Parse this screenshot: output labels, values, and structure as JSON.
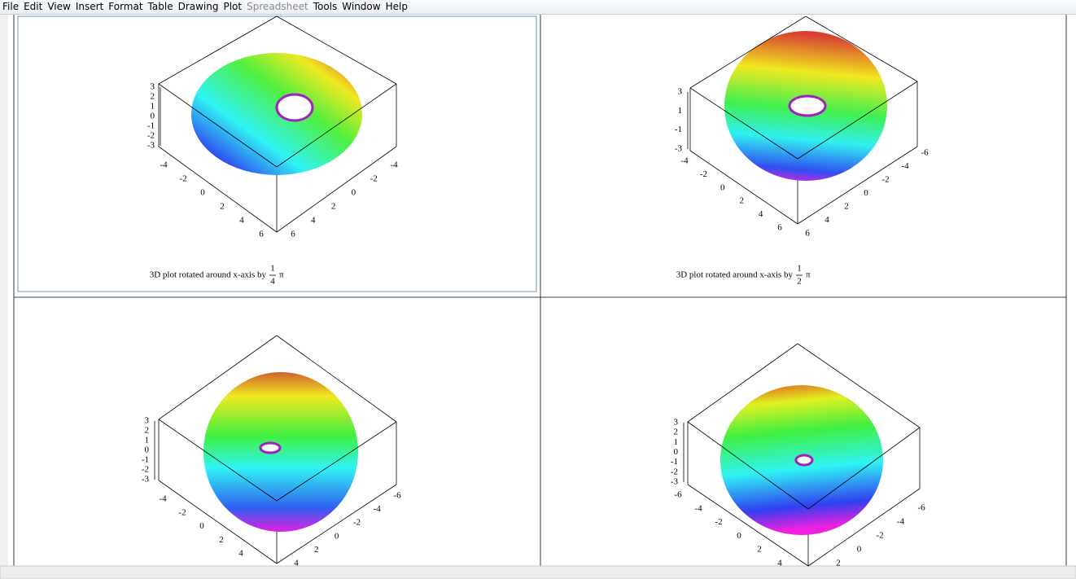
{
  "menu": [
    "File",
    "Edit",
    "View",
    "Insert",
    "Format",
    "Table",
    "Drawing",
    "Plot",
    "Spreadsheet",
    "Tools",
    "Window",
    "Help"
  ],
  "plots": [
    {
      "caption": {
        "text": "3D plot rotated around x-axis by",
        "numerator": "1",
        "denominator": "4",
        "symbol": "π"
      },
      "z_ticks": [
        "3",
        "2",
        "1",
        "0",
        "-1",
        "-2",
        "-3"
      ],
      "left_ticks": [
        "-4",
        "-2",
        "0",
        "2",
        "4",
        "6"
      ],
      "right_ticks": [
        "-4",
        "-2",
        "0",
        "2",
        "4",
        "6"
      ]
    },
    {
      "caption": {
        "text": "3D plot rotated around x-axis by",
        "numerator": "1",
        "denominator": "2",
        "symbol": "π"
      },
      "z_ticks": [
        "3",
        "1",
        "-1",
        "-3"
      ],
      "left_ticks": [
        "-4",
        "-2",
        "0",
        "2",
        "4",
        "6"
      ],
      "right_ticks": [
        "-6",
        "-4",
        "-2",
        "0",
        "2",
        "4",
        "6"
      ]
    },
    {
      "z_ticks": [
        "3",
        "2",
        "1",
        "0",
        "-1",
        "-2",
        "-3"
      ],
      "left_ticks": [
        "-4",
        "-2",
        "0",
        "2",
        "4"
      ],
      "right_ticks": [
        "-6",
        "-4",
        "-2",
        "0",
        "2",
        "4"
      ]
    },
    {
      "z_ticks": [
        "3",
        "2",
        "1",
        "0",
        "-1",
        "-2",
        "-3"
      ],
      "left_ticks": [
        "-6",
        "-4",
        "-2",
        "0",
        "2",
        "4"
      ],
      "right_ticks": [
        "-6",
        "-4",
        "-2",
        "0",
        "2"
      ]
    }
  ]
}
